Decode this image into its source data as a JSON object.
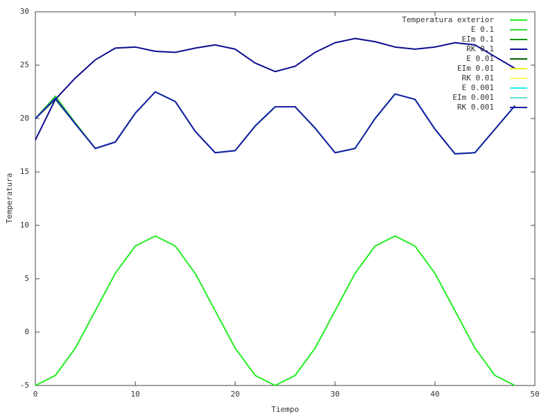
{
  "chart_data": {
    "type": "line",
    "xlabel": "Tiempo",
    "ylabel": "Temperatura",
    "x": [
      0,
      2,
      4,
      6,
      8,
      10,
      12,
      14,
      16,
      18,
      20,
      22,
      24,
      26,
      28,
      30,
      32,
      34,
      36,
      38,
      40,
      42,
      44,
      46,
      48
    ],
    "xlim": [
      0,
      50
    ],
    "xticks": [
      0,
      10,
      20,
      30,
      40,
      50
    ],
    "ylim": [
      -5,
      30
    ],
    "yticks": [
      -5,
      0,
      5,
      10,
      15,
      20,
      25,
      30
    ],
    "legend": "top-right",
    "series": [
      {
        "name": "Temperatura exterior",
        "color": "#22ee22",
        "values": [
          -5,
          -4.06,
          -1.5,
          2,
          5.5,
          8.06,
          9,
          8.06,
          5.5,
          2,
          -1.5,
          -4.06,
          -5,
          -4.06,
          -1.5,
          2,
          5.5,
          8.06,
          9,
          8.06,
          5.5,
          2,
          -1.5,
          -4.06,
          -5
        ]
      },
      {
        "name": "E 0.1",
        "color": "#33dd33",
        "values": [
          20,
          22.1,
          19.6,
          17.2,
          17.8,
          20.5,
          22.5,
          21.6,
          18.8,
          16.8,
          17,
          19.3,
          21.1,
          21.1,
          19.1,
          16.8,
          17.2,
          20,
          22.3,
          21.8,
          19,
          16.7,
          16.8,
          19,
          21.2
        ]
      },
      {
        "name": "EIm 0.1",
        "color": "#119911",
        "values": [
          20,
          21.8,
          19.5,
          17.2,
          17.8,
          20.5,
          22.5,
          21.6,
          18.8,
          16.8,
          17,
          19.3,
          21.1,
          21.1,
          19.1,
          16.8,
          17.2,
          20,
          22.3,
          21.8,
          19,
          16.7,
          16.8,
          19,
          21.2
        ]
      },
      {
        "name": "RK 0.1",
        "color": "#0a0a90",
        "values": [
          18,
          21.8,
          23.8,
          25.5,
          26.6,
          26.7,
          26.3,
          26.2,
          26.6,
          26.9,
          26.5,
          25.2,
          24.4,
          24.9,
          26.2,
          27.1,
          27.5,
          27.2,
          26.7,
          26.5,
          26.7,
          27.1,
          26.9,
          25.8,
          24.7
        ]
      },
      {
        "name": "E 0.01",
        "color": "#006400",
        "values": [
          20,
          21.9,
          19.5,
          17.2,
          17.8,
          20.5,
          22.5,
          21.6,
          18.8,
          16.8,
          17,
          19.3,
          21.1,
          21.1,
          19.1,
          16.8,
          17.2,
          20,
          22.3,
          21.8,
          19,
          16.7,
          16.8,
          19,
          21.2
        ]
      },
      {
        "name": "EIm 0.01",
        "color": "#eeee22",
        "values": [
          20,
          21.9,
          19.5,
          17.2,
          17.8,
          20.5,
          22.5,
          21.6,
          18.8,
          16.8,
          17,
          19.3,
          21.1,
          21.1,
          19.1,
          16.8,
          17.2,
          20,
          22.3,
          21.8,
          19,
          16.7,
          16.8,
          19,
          21.2
        ]
      },
      {
        "name": "RK 0.01",
        "color": "#ffff66",
        "values": [
          20,
          21.9,
          19.5,
          17.2,
          17.8,
          20.5,
          22.5,
          21.6,
          18.8,
          16.8,
          17,
          19.3,
          21.1,
          21.1,
          19.1,
          16.8,
          17.2,
          20,
          22.3,
          21.8,
          19,
          16.7,
          16.8,
          19,
          21.2
        ]
      },
      {
        "name": "E 0.001",
        "color": "#22eeee",
        "values": [
          20,
          21.9,
          19.5,
          17.2,
          17.8,
          20.5,
          22.5,
          21.6,
          18.8,
          16.8,
          17,
          19.3,
          21.1,
          21.1,
          19.1,
          16.8,
          17.2,
          20,
          22.3,
          21.8,
          19,
          16.7,
          16.8,
          19,
          21.2
        ]
      },
      {
        "name": "EIm 0.001",
        "color": "#66dddd",
        "values": [
          20,
          21.9,
          19.5,
          17.2,
          17.8,
          20.5,
          22.5,
          21.6,
          18.8,
          16.8,
          17,
          19.3,
          21.1,
          21.1,
          19.1,
          16.8,
          17.2,
          20,
          22.3,
          21.8,
          19,
          16.7,
          16.8,
          19,
          21.2
        ]
      },
      {
        "name": "RK 0.001",
        "color": "#1a1aa8",
        "values": [
          20,
          21.9,
          19.5,
          17.2,
          17.8,
          20.5,
          22.5,
          21.6,
          18.8,
          16.8,
          17,
          19.3,
          21.1,
          21.1,
          19.1,
          16.8,
          17.2,
          20,
          22.3,
          21.8,
          19,
          16.7,
          16.8,
          19,
          21.2
        ]
      }
    ]
  }
}
